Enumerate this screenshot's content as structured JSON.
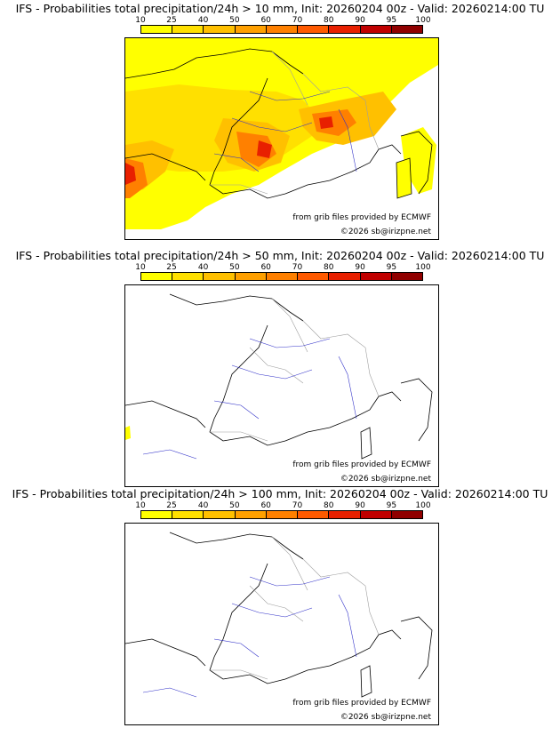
{
  "colorbar": {
    "ticks": [
      "10",
      "25",
      "40",
      "50",
      "60",
      "70",
      "80",
      "90",
      "95",
      "100"
    ],
    "colors": [
      "#ffff00",
      "#ffe000",
      "#ffc000",
      "#ffa000",
      "#ff8000",
      "#ff5a00",
      "#e82000",
      "#c00000",
      "#900000",
      "#600000"
    ]
  },
  "colors": {
    "land": "#ffffff",
    "coast": "#000000",
    "border": "#9e9e9e",
    "river": "#3030c8"
  },
  "panels": [
    {
      "title": "IFS - Probabilities total precipitation/24h > 10 mm, Init: 20260204 00z - Valid: 20260214:00 TU",
      "source": "from grib files provided by ECMWF",
      "copyright": "©2026 sb@irizpne.net",
      "precip_level": "high"
    },
    {
      "title": "IFS - Probabilities total precipitation/24h > 50 mm, Init: 20260204 00z - Valid: 20260214:00 TU",
      "source": "from grib files provided by ECMWF",
      "copyright": "©2026 sb@irizpne.net",
      "precip_level": "trace"
    },
    {
      "title": "IFS - Probabilities total precipitation/24h > 100 mm, Init: 20260204 00z - Valid: 20260214:00 TU",
      "source": "from grib files provided by ECMWF",
      "copyright": "©2026 sb@irizpne.net",
      "precip_level": "none"
    }
  ]
}
